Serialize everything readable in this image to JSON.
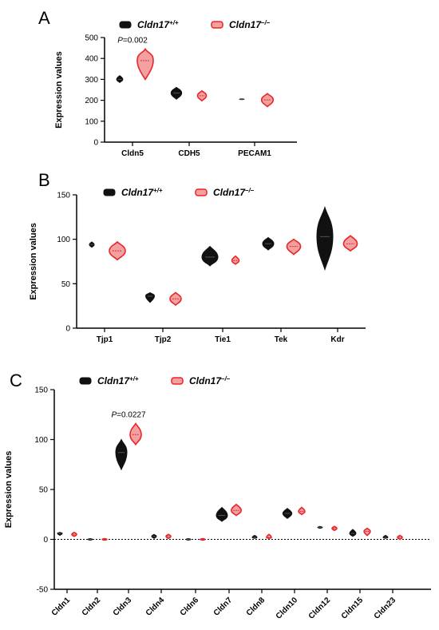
{
  "colors": {
    "wt": "#111111",
    "ko": "#e8262a",
    "ko_fill": "#f2a0a0"
  },
  "legend": {
    "wt_base": "Cldn17",
    "wt_sup": "+/+",
    "ko_base": "Cldn17",
    "ko_sup": "–/–"
  },
  "chart_data": [
    {
      "panel": "A",
      "type": "violin",
      "ylabel": "Expression values",
      "ylim": [
        0,
        500
      ],
      "yticks": [
        0,
        100,
        200,
        300,
        400,
        500
      ],
      "categories": [
        "Cldn5",
        "CDH5",
        "PECAM1"
      ],
      "series": [
        {
          "name": "Cldn17+/+",
          "values": [
            300,
            235,
            205
          ],
          "ranges": [
            [
              285,
              318
            ],
            [
              205,
              262
            ],
            [
              203,
              207
            ]
          ]
        },
        {
          "name": "Cldn17–/–",
          "values": [
            390,
            222,
            202
          ],
          "ranges": [
            [
              300,
              445
            ],
            [
              198,
              245
            ],
            [
              170,
              232
            ]
          ]
        }
      ],
      "annotations": [
        {
          "text": "P=0.002",
          "category": "Cldn5"
        }
      ]
    },
    {
      "panel": "B",
      "type": "violin",
      "ylabel": "Expression values",
      "ylim": [
        0,
        150
      ],
      "yticks": [
        0,
        50,
        100,
        150
      ],
      "categories": [
        "Tjp1",
        "Tjp2",
        "Tie1",
        "Tek",
        "Kdr"
      ],
      "series": [
        {
          "name": "Cldn17+/+",
          "values": [
            94,
            36,
            80,
            95,
            103
          ],
          "ranges": [
            [
              91,
              97
            ],
            [
              29,
              40
            ],
            [
              70,
              92
            ],
            [
              88,
              102
            ],
            [
              66,
              136
            ]
          ]
        },
        {
          "name": "Cldn17–/–",
          "values": [
            87,
            33,
            76,
            92,
            95
          ],
          "ranges": [
            [
              77,
              97
            ],
            [
              26,
              40
            ],
            [
              72,
              81
            ],
            [
              83,
              100
            ],
            [
              87,
              104
            ]
          ]
        }
      ]
    },
    {
      "panel": "C",
      "type": "violin",
      "ylabel": "Expression values",
      "ylim": [
        -50,
        150
      ],
      "yticks": [
        -50,
        0,
        50,
        100,
        150
      ],
      "categories": [
        "Cldn1",
        "Cldn2",
        "Cldn3",
        "Cldn4",
        "Cldn6",
        "Cldn7",
        "Cldn8",
        "Cldn10",
        "Cldn12",
        "Cldn15",
        "Cldn23"
      ],
      "series": [
        {
          "name": "Cldn17+/+",
          "values": [
            6,
            0,
            87,
            3,
            0,
            24,
            2,
            26,
            12,
            6,
            2
          ],
          "ranges": [
            [
              4,
              7
            ],
            [
              -0.8,
              0.8
            ],
            [
              70,
              100
            ],
            [
              1,
              5
            ],
            [
              -0.8,
              0.8
            ],
            [
              18,
              32
            ],
            [
              1,
              4
            ],
            [
              21,
              31
            ],
            [
              11,
              13
            ],
            [
              3,
              10
            ],
            [
              1,
              4
            ]
          ]
        },
        {
          "name": "Cldn17–/–",
          "values": [
            5,
            0,
            105,
            3,
            0,
            29,
            2,
            28,
            11,
            8,
            2
          ],
          "ranges": [
            [
              3,
              7
            ],
            [
              -0.8,
              0.8
            ],
            [
              95,
              116
            ],
            [
              1,
              5
            ],
            [
              -0.8,
              0.8
            ],
            [
              24,
              35
            ],
            [
              1,
              5
            ],
            [
              25,
              32
            ],
            [
              9,
              13
            ],
            [
              4,
              11
            ],
            [
              0,
              4
            ]
          ]
        }
      ],
      "annotations": [
        {
          "text": "P=0.0227",
          "category": "Cldn3"
        }
      ],
      "reference_line": 0
    }
  ]
}
